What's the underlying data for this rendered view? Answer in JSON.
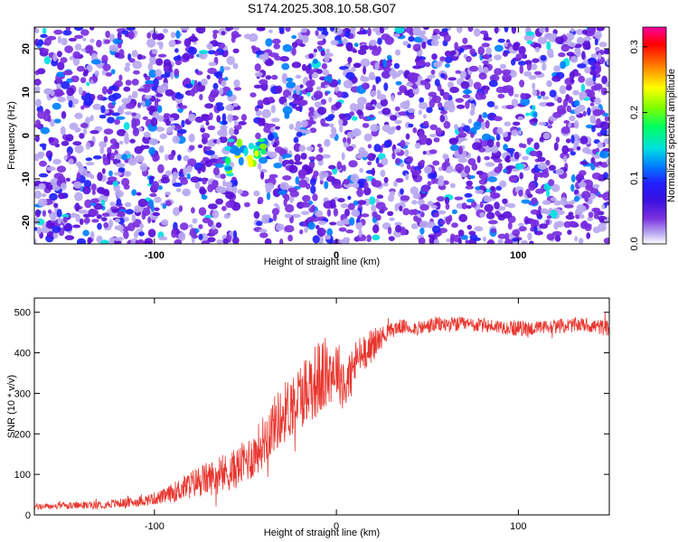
{
  "figure_title": "S174.2025.308.10.58.G07",
  "colors": {
    "snr_line": "#e8362e",
    "spectrum_background": "#ffffff",
    "colormap": [
      "#ffffff",
      "#b8a8f0",
      "#7a2ee0",
      "#5a10d8",
      "#2020ff",
      "#0080ff",
      "#00e0e0",
      "#00ff60",
      "#80ff00",
      "#ffff00",
      "#ff8000",
      "#ff0000",
      "#ff00a0"
    ]
  },
  "chart_data": [
    {
      "type": "heatmap",
      "title": "S174.2025.308.10.58.G07",
      "xlabel": "Height of straight line (km)",
      "ylabel": "Frequency (Hz)",
      "xlim": [
        -166,
        150
      ],
      "ylim": [
        -25,
        25
      ],
      "xticks": [
        -100,
        0,
        100
      ],
      "yticks": [
        -20,
        -10,
        0,
        10,
        20
      ],
      "gap_x_range": [
        -55,
        -43
      ],
      "feature_peak": {
        "x": -50,
        "y": -5,
        "amplitude": 0.25
      },
      "colorbar": {
        "label": "Normalized spectral amplitude",
        "range": [
          0,
          0.33
        ],
        "ticks": [
          0.0,
          0.1,
          0.2,
          0.3
        ]
      }
    },
    {
      "type": "line",
      "xlabel": "Height of straight line (km)",
      "ylabel": "SNR (10 * v/v)",
      "xlim": [
        -166,
        150
      ],
      "ylim": [
        0,
        535
      ],
      "xticks": [
        -100,
        0,
        100
      ],
      "yticks": [
        0,
        100,
        200,
        300,
        400,
        500
      ],
      "series": [
        {
          "name": "SNR",
          "color": "#e8362e",
          "x": [
            -166,
            -150,
            -130,
            -110,
            -95,
            -85,
            -75,
            -65,
            -55,
            -45,
            -35,
            -25,
            -15,
            -8,
            0,
            5,
            12,
            20,
            28,
            35,
            45,
            55,
            70,
            90,
            100,
            110,
            120,
            135,
            150
          ],
          "y": [
            20,
            22,
            25,
            32,
            45,
            65,
            85,
            95,
            115,
            150,
            220,
            270,
            320,
            340,
            365,
            320,
            390,
            420,
            450,
            465,
            460,
            470,
            470,
            465,
            460,
            460,
            465,
            470,
            460
          ],
          "noise_amp": [
            8,
            8,
            10,
            12,
            18,
            30,
            40,
            45,
            50,
            60,
            70,
            80,
            90,
            100,
            70,
            80,
            50,
            40,
            20,
            18,
            18,
            20,
            18,
            18,
            20,
            18,
            18,
            18,
            20
          ]
        }
      ]
    }
  ]
}
